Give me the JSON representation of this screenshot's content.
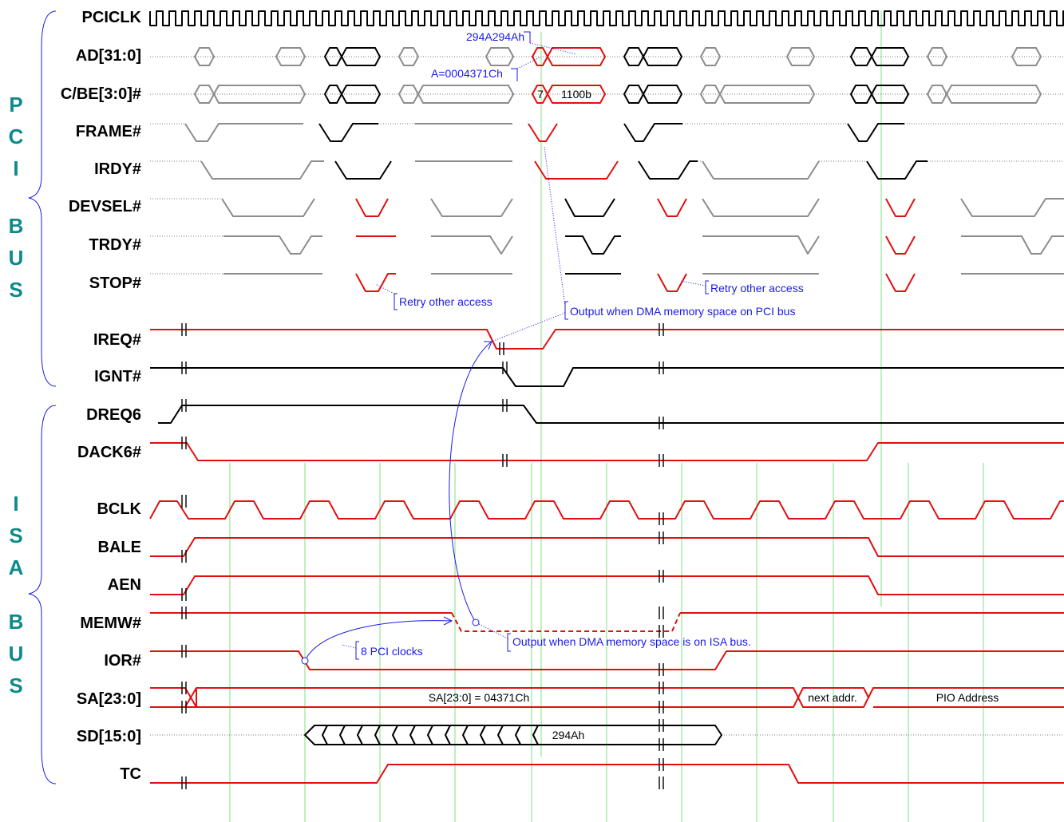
{
  "signals": [
    {
      "id": "pciclk",
      "name": "PCICLK"
    },
    {
      "id": "ad",
      "name": "AD[31:0]"
    },
    {
      "id": "cbe",
      "name": "C/BE[3:0]#"
    },
    {
      "id": "frame",
      "name": "FRAME#"
    },
    {
      "id": "irdy",
      "name": "IRDY#"
    },
    {
      "id": "devsel",
      "name": "DEVSEL#"
    },
    {
      "id": "trdy",
      "name": "TRDY#"
    },
    {
      "id": "stop",
      "name": "STOP#"
    },
    {
      "id": "ireq",
      "name": "IREQ#"
    },
    {
      "id": "ignt",
      "name": "IGNT#"
    },
    {
      "id": "dreq6",
      "name": "DREQ6"
    },
    {
      "id": "dack6",
      "name": "DACK6#"
    },
    {
      "id": "bclk",
      "name": "BCLK"
    },
    {
      "id": "bale",
      "name": "BALE"
    },
    {
      "id": "aen",
      "name": "AEN"
    },
    {
      "id": "memw",
      "name": "MEMW#"
    },
    {
      "id": "ior",
      "name": "IOR#"
    },
    {
      "id": "sa",
      "name": "SA[23:0]"
    },
    {
      "id": "sd",
      "name": "SD[15:0]"
    },
    {
      "id": "tc",
      "name": "TC"
    }
  ],
  "bus_groups": {
    "pci": [
      "P",
      "C",
      "I",
      "B",
      "U",
      "S"
    ],
    "isa": [
      "I",
      "S",
      "A",
      "B",
      "U",
      "S"
    ]
  },
  "values": {
    "cbe_cmd": "7",
    "cbe_be": "1100b",
    "sa_addr": "SA[23:0] = 04371Ch",
    "sa_next": "next addr.",
    "sa_pio": "PIO Address",
    "sd_data": "294Ah"
  },
  "annotations": {
    "ad_data": "294A294Ah",
    "ad_addr": "A=0004371Ch",
    "retry1": "Retry other access",
    "retry2": "Retry other access",
    "pci_dma": "Output when DMA memory space on PCI bus",
    "isa_dma": "Output when DMA memory space is on ISA bus.",
    "pci_clocks": "8 PCI clocks"
  },
  "colors": {
    "active": "#e01010",
    "other": "#8c8c8c",
    "normal": "#000000",
    "annotation": "#1a1ae6",
    "bus_label": "#0e8a8a",
    "grid": "#7fe07f"
  }
}
